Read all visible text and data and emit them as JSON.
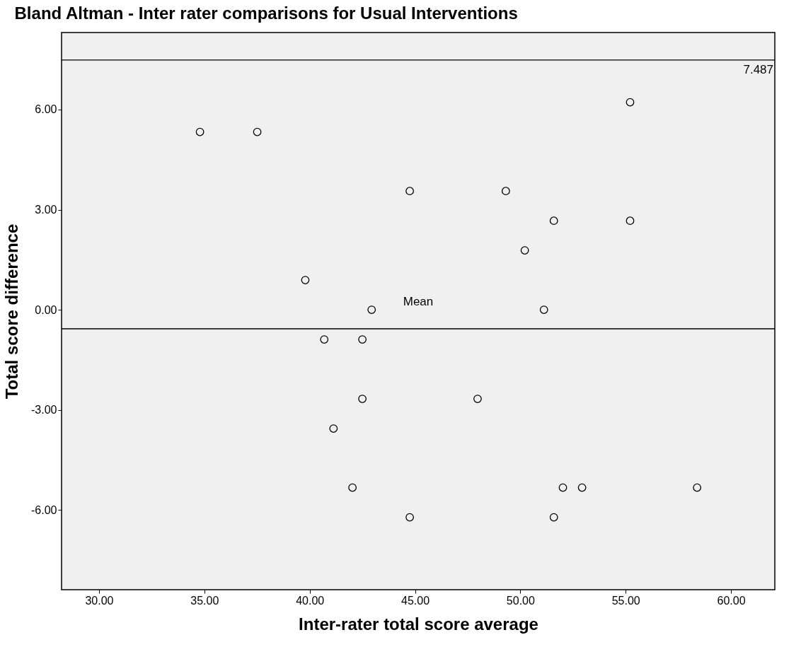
{
  "chart_data": {
    "type": "scatter",
    "title": "Bland Altman - Inter rater comparisons for Usual Interventions",
    "xlabel": "Inter-rater total score average",
    "ylabel": "Total score difference",
    "x": [
      34.79,
      37.51,
      44.75,
      49.31,
      55.21,
      51.59,
      55.21,
      50.21,
      39.79,
      42.94,
      51.12,
      40.69,
      42.5,
      42.5,
      47.97,
      41.13,
      42.03,
      52.02,
      52.93,
      58.39,
      44.75,
      51.59
    ],
    "series": [
      {
        "color": "#000000",
        "values": [
          5.33,
          5.33,
          3.56,
          3.56,
          6.22,
          2.67,
          2.67,
          1.78,
          0.89,
          0,
          0,
          -0.89,
          -0.89,
          -2.67,
          -2.67,
          -3.56,
          -5.33,
          -5.33,
          -5.33,
          -5.33,
          -6.22,
          -6.22
        ]
      }
    ],
    "xlim": [
      28.22,
      62.08
    ],
    "ylim": [
      -8.39,
      8.31
    ],
    "xticks": [
      {
        "value": 30,
        "label": "30.00"
      },
      {
        "value": 35,
        "label": "35.00"
      },
      {
        "value": 40,
        "label": "40.00"
      },
      {
        "value": 45,
        "label": "45.00"
      },
      {
        "value": 50,
        "label": "50.00"
      },
      {
        "value": 55,
        "label": "55.00"
      },
      {
        "value": 60,
        "label": "60.00"
      }
    ],
    "yticks": [
      {
        "value": -6,
        "label": "-6.00"
      },
      {
        "value": -3,
        "label": "-3.00"
      },
      {
        "value": 0,
        "label": "0.00"
      },
      {
        "value": 3,
        "label": "3.00"
      },
      {
        "value": 6,
        "label": "6.00"
      }
    ],
    "ref_lines": [
      {
        "axis": "y",
        "value": 7.487,
        "label": "7.487",
        "color": "#000000"
      },
      {
        "axis": "y",
        "value": -0.57,
        "label": "Mean",
        "color": "#000000"
      }
    ],
    "marker": "circle",
    "grid": false
  }
}
